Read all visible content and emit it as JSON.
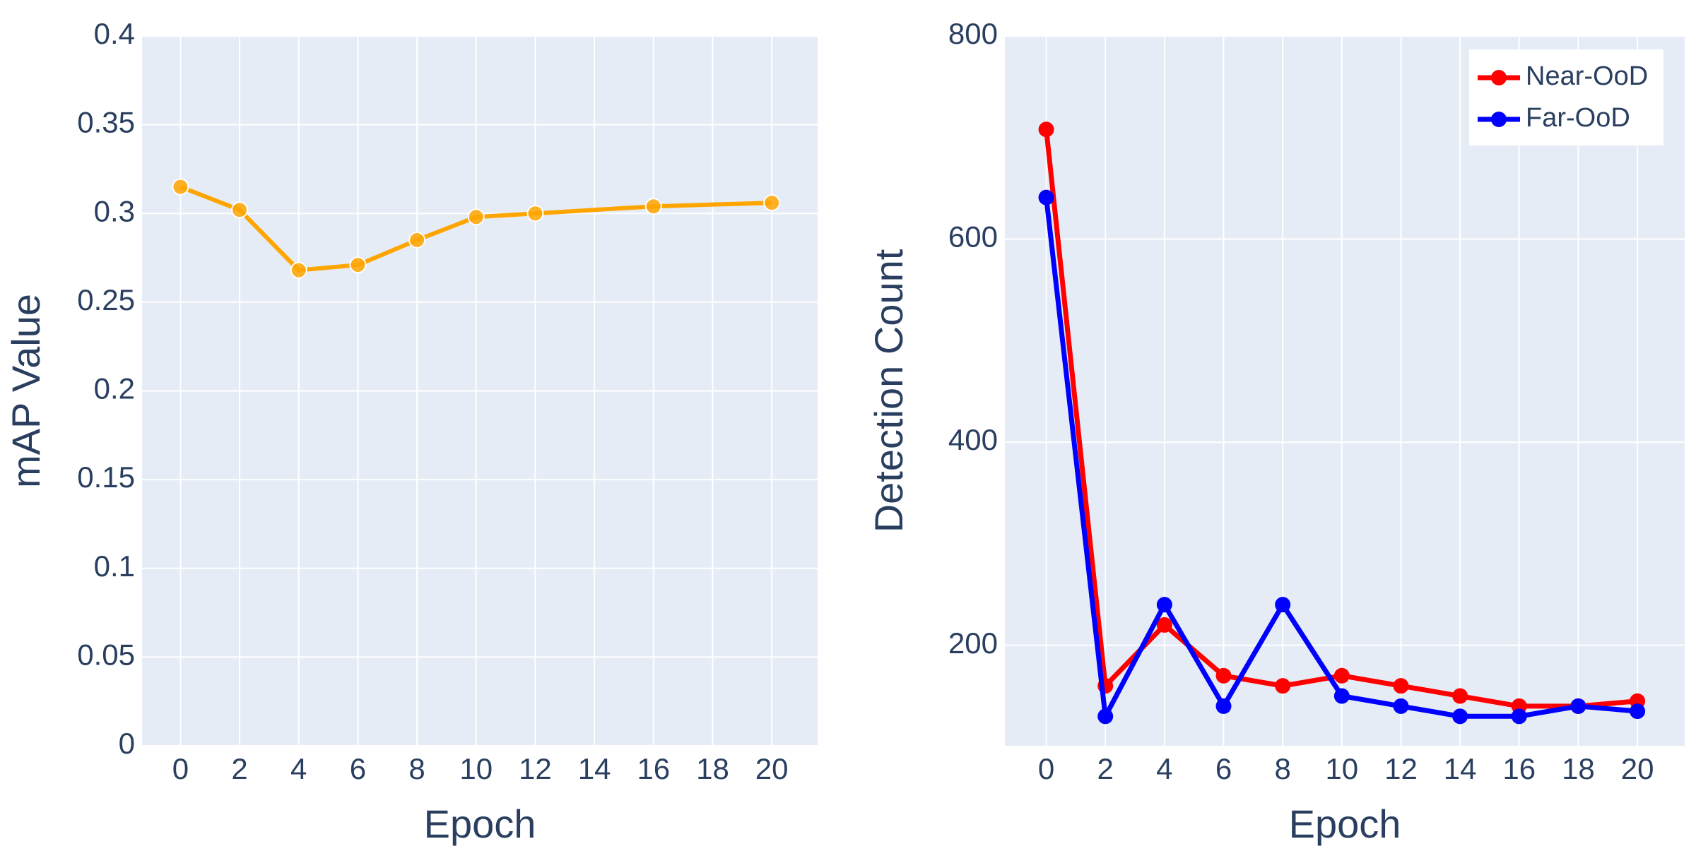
{
  "chart_data": [
    {
      "type": "line",
      "x_label": "Epoch",
      "y_label": "mAP Value",
      "x": [
        0,
        2,
        4,
        6,
        8,
        10,
        12,
        16,
        20
      ],
      "values": [
        0.315,
        0.302,
        0.268,
        0.271,
        0.285,
        0.298,
        0.3,
        0.304,
        0.306
      ],
      "color": "#ffa500",
      "xlim": [
        -1.3,
        21.55
      ],
      "xticks": [
        0,
        2,
        4,
        6,
        8,
        10,
        12,
        14,
        16,
        18,
        20
      ],
      "ylim": [
        0,
        0.4
      ],
      "yticks": [
        0,
        0.05,
        0.1,
        0.15,
        0.2,
        0.25,
        0.3,
        0.35,
        0.4
      ],
      "grid": true
    },
    {
      "type": "line",
      "x_label": "Epoch",
      "y_label": "Detection Count",
      "x": [
        0,
        2,
        4,
        6,
        8,
        10,
        12,
        14,
        16,
        18,
        20
      ],
      "series": [
        {
          "name": "Near-OoD",
          "color": "#ff0000",
          "values": [
            708,
            160,
            220,
            170,
            160,
            170,
            160,
            150,
            140,
            140,
            145
          ]
        },
        {
          "name": "Far-OoD",
          "color": "#0000ff",
          "values": [
            641,
            130,
            240,
            140,
            240,
            150,
            140,
            130,
            130,
            140,
            135
          ]
        }
      ],
      "xlim": [
        -1.4,
        21.6
      ],
      "xticks": [
        0,
        2,
        4,
        6,
        8,
        10,
        12,
        14,
        16,
        18,
        20
      ],
      "ylim": [
        101,
        800
      ],
      "yticks": [
        200,
        400,
        600,
        800
      ],
      "grid": true,
      "legend": "top-right"
    }
  ]
}
